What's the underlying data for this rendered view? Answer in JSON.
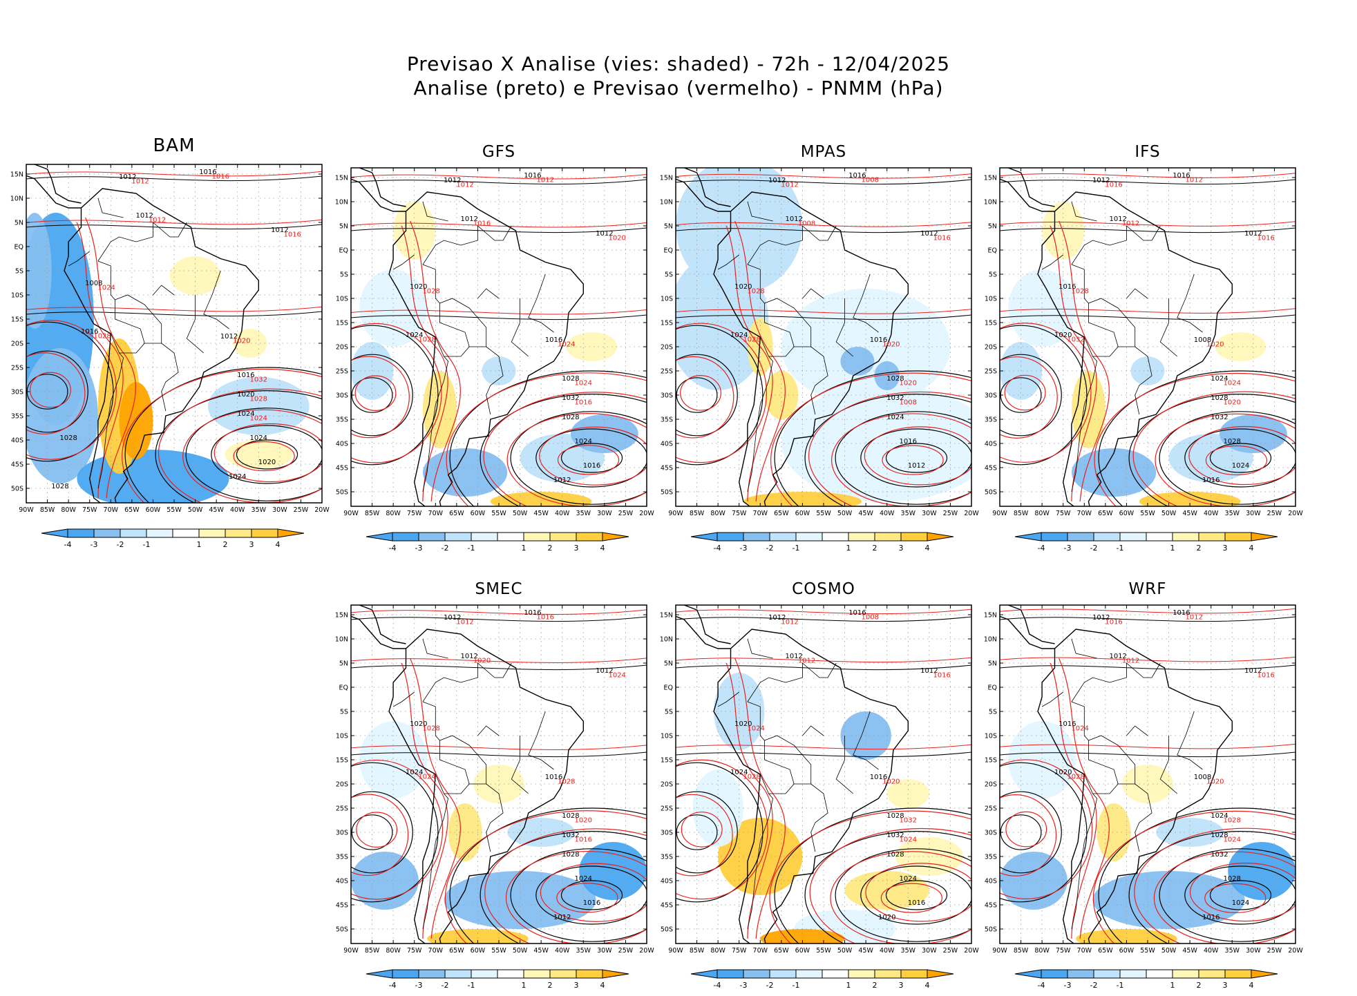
{
  "header": {
    "title_line1": "Previsao X Analise (vies: shaded) - 72h - 12/04/2025",
    "title_line2": "Analise (preto) e Previsao (vermelho) - PNMM (hPa)"
  },
  "colors": {
    "neg4": "#4aa6f0",
    "neg3": "#86bff0",
    "neg2": "#bfe3fa",
    "neg1": "#e3f6ff",
    "zero": "#ffffff",
    "pos1": "#fff7b8",
    "pos2": "#ffe984",
    "pos3": "#ffcf3e",
    "pos4": "#ffa400",
    "analysis_contour": "#000000",
    "forecast_contour": "#e8211d"
  },
  "axes": {
    "lat_labels": [
      "15N",
      "10N",
      "5N",
      "EQ",
      "5S",
      "10S",
      "15S",
      "20S",
      "25S",
      "30S",
      "35S",
      "40S",
      "45S",
      "50S"
    ],
    "lon_labels": [
      "90W",
      "85W",
      "80W",
      "75W",
      "70W",
      "65W",
      "60W",
      "55W",
      "50W",
      "45W",
      "40W",
      "35W",
      "30W",
      "25W",
      "20W"
    ]
  },
  "colorbar": {
    "labels": [
      "-4",
      "-3",
      "-2",
      "-1",
      "1",
      "2",
      "3",
      "4"
    ]
  },
  "panels": [
    {
      "name": "BAM",
      "bias": "cold-ocean",
      "black_labels": [
        "1012",
        "1016",
        "1012",
        "1012",
        "1012",
        "1008",
        "1016",
        "1016",
        "1020",
        "1024",
        "1024",
        "1020",
        "1024",
        "1028",
        "1028"
      ],
      "red_labels": [
        "1012",
        "1016",
        "1012",
        "1016",
        "1020",
        "1024",
        "1028",
        "1032",
        "1028",
        "1024"
      ]
    },
    {
      "name": "GFS",
      "bias": "mixed",
      "black_labels": [
        "1012",
        "1016",
        "1012",
        "1012",
        "1016",
        "1020",
        "1024",
        "1028",
        "1032",
        "1028",
        "1024",
        "1016",
        "1012"
      ],
      "red_labels": [
        "1012",
        "1012",
        "1016",
        "1020",
        "1024",
        "1028",
        "1028",
        "1024",
        "1016"
      ]
    },
    {
      "name": "MPAS",
      "bias": "cold-wide",
      "black_labels": [
        "1012",
        "1016",
        "1012",
        "1012",
        "1016",
        "1020",
        "1024",
        "1028",
        "1032",
        "1024",
        "1016",
        "1012"
      ],
      "red_labels": [
        "1012",
        "1008",
        "1008",
        "1016",
        "1020",
        "1028",
        "1028",
        "1020",
        "1008"
      ]
    },
    {
      "name": "IFS",
      "bias": "mixed",
      "black_labels": [
        "1012",
        "1016",
        "1012",
        "1012",
        "1008",
        "1016",
        "1020",
        "1024",
        "1028",
        "1032",
        "1028",
        "1024",
        "1016"
      ],
      "red_labels": [
        "1016",
        "1012",
        "1012",
        "1016",
        "1020",
        "1028",
        "1032",
        "1024",
        "1020"
      ]
    },
    {
      "name": "SMEC",
      "bias": "cold-south",
      "black_labels": [
        "1012",
        "1016",
        "1012",
        "1012",
        "1016",
        "1020",
        "1024",
        "1028",
        "1032",
        "1028",
        "1024",
        "1016",
        "1012"
      ],
      "red_labels": [
        "1012",
        "1016",
        "1020",
        "1024",
        "1028",
        "1028",
        "1024",
        "1020",
        "1016"
      ]
    },
    {
      "name": "COSMO",
      "bias": "warm-east",
      "black_labels": [
        "1012",
        "1016",
        "1012",
        "1012",
        "1016",
        "1020",
        "1024",
        "1028",
        "1032",
        "1028",
        "1024",
        "1016",
        "1020"
      ],
      "red_labels": [
        "1012",
        "1008",
        "1012",
        "1016",
        "1020",
        "1024",
        "1028",
        "1032",
        "1024"
      ]
    },
    {
      "name": "WRF",
      "bias": "cold-south",
      "black_labels": [
        "1012",
        "1016",
        "1012",
        "1012",
        "1008",
        "1016",
        "1020",
        "1024",
        "1028",
        "1032",
        "1028",
        "1024",
        "1016"
      ],
      "red_labels": [
        "1016",
        "1012",
        "1012",
        "1016",
        "1020",
        "1024",
        "1028",
        "1028",
        "1024"
      ]
    }
  ]
}
